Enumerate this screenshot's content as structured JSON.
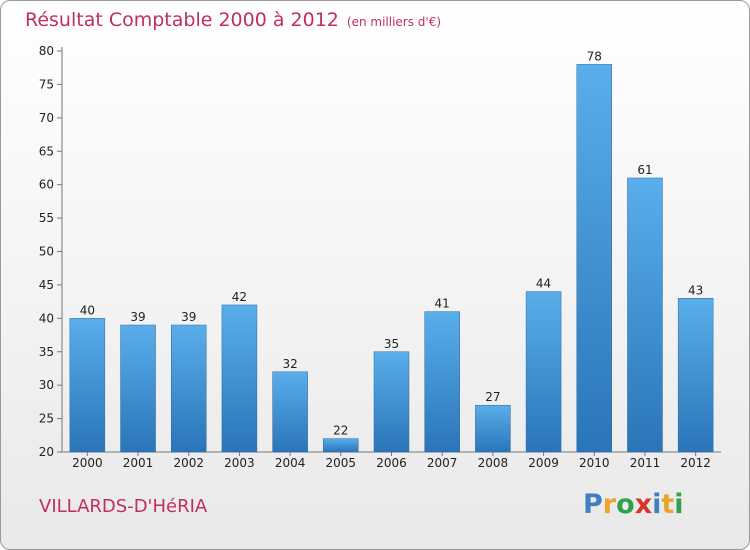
{
  "chart_data": {
    "type": "bar",
    "title": "Résultat Comptable 2000 à 2012",
    "subtitle": "(en milliers d'€)",
    "categories": [
      "2000",
      "2001",
      "2002",
      "2003",
      "2004",
      "2005",
      "2006",
      "2007",
      "2008",
      "2009",
      "2010",
      "2011",
      "2012"
    ],
    "values": [
      40,
      39,
      39,
      42,
      32,
      22,
      35,
      41,
      27,
      44,
      78,
      61,
      43
    ],
    "ylim": [
      20,
      80
    ],
    "yticks": [
      20,
      25,
      30,
      35,
      40,
      45,
      50,
      55,
      60,
      65,
      70,
      75,
      80
    ],
    "grid": false,
    "bar_color": "#3a8fd6"
  },
  "footer": {
    "commune": "VILLARDS-D'HéRIA",
    "logo_letters": [
      {
        "ch": "P",
        "color": "#3f7fc4"
      },
      {
        "ch": "r",
        "color": "#e9a62a"
      },
      {
        "ch": "o",
        "color": "#2fa24a"
      },
      {
        "ch": "x",
        "color": "#d8332d"
      },
      {
        "ch": "i",
        "color": "#3f7fc4"
      },
      {
        "ch": "t",
        "color": "#e9a62a"
      },
      {
        "ch": "i",
        "color": "#2fa24a"
      }
    ]
  }
}
